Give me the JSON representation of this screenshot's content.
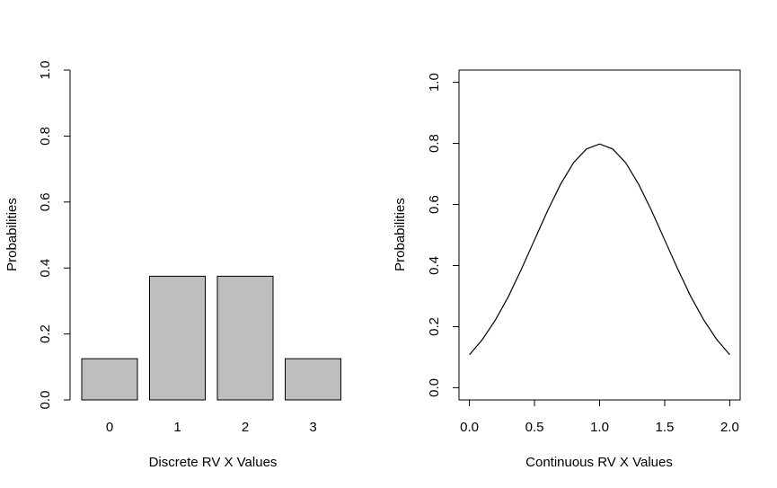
{
  "chart_data": [
    {
      "type": "bar",
      "categories": [
        "0",
        "1",
        "2",
        "3"
      ],
      "values": [
        0.125,
        0.375,
        0.375,
        0.125
      ],
      "xlabel": "Discrete RV X Values",
      "ylabel": "Probabilities",
      "ylim": [
        0,
        1
      ],
      "yticks": [
        "0.0",
        "0.2",
        "0.4",
        "0.6",
        "0.8",
        "1.0"
      ],
      "bar_color": "#bebebe",
      "box": false
    },
    {
      "type": "line",
      "x": [
        0.0,
        0.1,
        0.2,
        0.3,
        0.4,
        0.5,
        0.6,
        0.7,
        0.8,
        0.9,
        1.0,
        1.1,
        1.2,
        1.3,
        1.4,
        1.5,
        1.6,
        1.7,
        1.8,
        1.9,
        2.0
      ],
      "y": [
        0.108,
        0.158,
        0.222,
        0.299,
        0.389,
        0.484,
        0.579,
        0.666,
        0.737,
        0.782,
        0.798,
        0.782,
        0.737,
        0.666,
        0.579,
        0.484,
        0.389,
        0.299,
        0.222,
        0.158,
        0.108
      ],
      "xlabel": "Continuous RV X Values",
      "ylabel": "Probabilities",
      "xlim": [
        0,
        2
      ],
      "ylim": [
        0,
        1
      ],
      "xticks": [
        "0.0",
        "0.5",
        "1.0",
        "1.5",
        "2.0"
      ],
      "yticks": [
        "0.0",
        "0.2",
        "0.4",
        "0.6",
        "0.8",
        "1.0"
      ],
      "box": true
    }
  ]
}
